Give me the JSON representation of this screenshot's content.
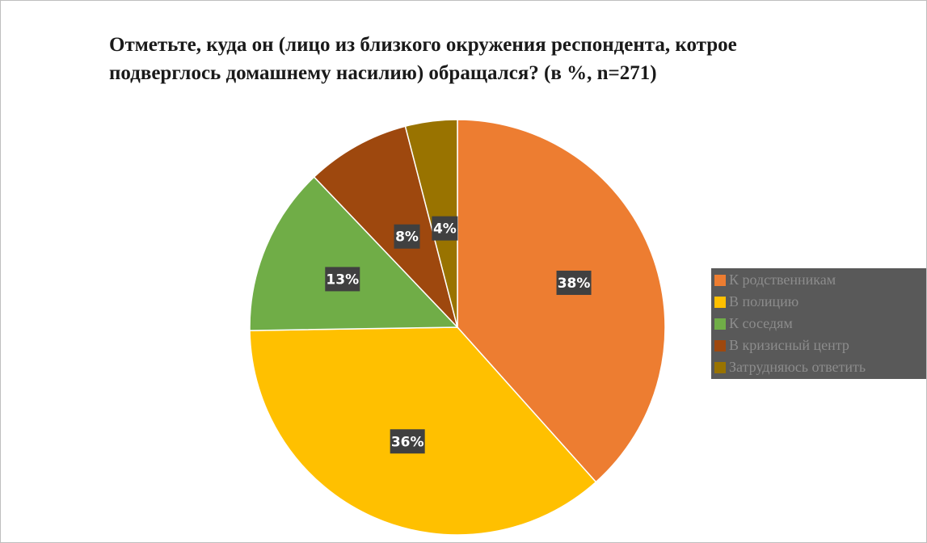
{
  "chart_data": {
    "type": "pie",
    "title": "Отметьте, куда он (лицо из близкого окружения респондента, котрое подверглось домашнему насилию) обращался? (в %, n=271)",
    "categories": [
      "К родственникам",
      "В полицию",
      "К соседям",
      "В кризисный центр",
      "Затрудняюсь ответить"
    ],
    "values": [
      38,
      36,
      13,
      8,
      4
    ],
    "value_labels": [
      "38%",
      "36%",
      "13%",
      "8%",
      "4%"
    ],
    "colors": [
      "#ed7d31",
      "#ffc000",
      "#70ad47",
      "#9e480e",
      "#997300"
    ],
    "legend": "right"
  }
}
